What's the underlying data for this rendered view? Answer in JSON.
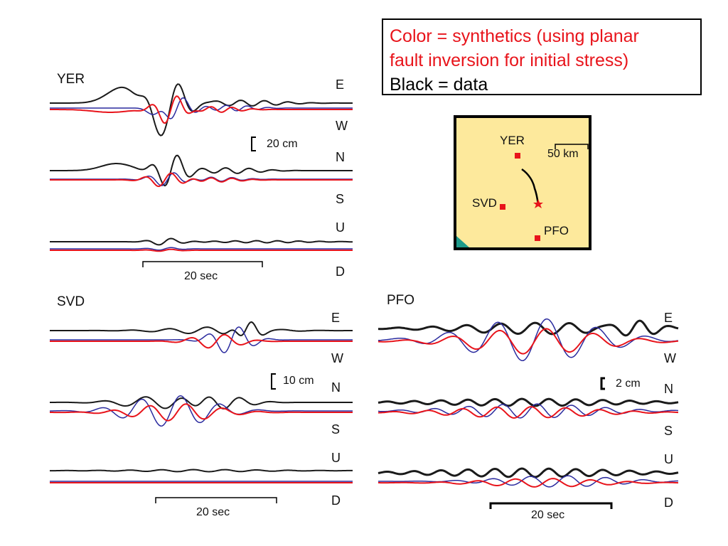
{
  "legend": {
    "line1": "Color = synthetics (using planar",
    "line2": "fault inversion for initial stress)",
    "line3": "Black = data"
  },
  "colors": {
    "data": "#1a1a1a",
    "synthetic_red": "#e8141b",
    "synthetic_blue": "#2a2a9e",
    "map_fill": "#fde99c",
    "station_marker": "#e8141b",
    "map_corner": "#1e9a8a"
  },
  "chart_data": [
    {
      "type": "line",
      "station": "YER",
      "components": [
        "E",
        "W",
        "N",
        "S",
        "U",
        "D"
      ],
      "amplitude_scale": "20 cm",
      "time_scale": "20 sec",
      "series": [
        {
          "name": "Black = data",
          "values": [
            0,
            0.1,
            0.3,
            0.9,
            0.4,
            -0.6,
            -1.0,
            1.0,
            0.6,
            -0.3,
            0.1,
            0,
            0.1,
            0
          ]
        },
        {
          "name": "Color = synthetics",
          "values": [
            0,
            0,
            -0.1,
            -0.2,
            -0.4,
            -0.8,
            0.4,
            -0.2,
            0.1,
            0,
            0,
            0,
            0,
            0
          ]
        }
      ]
    },
    {
      "type": "line",
      "station": "SVD",
      "components": [
        "E",
        "W",
        "N",
        "S",
        "U",
        "D"
      ],
      "amplitude_scale": "10 cm",
      "time_scale": "20 sec"
    },
    {
      "type": "line",
      "station": "PFO",
      "components": [
        "E",
        "W",
        "N",
        "S",
        "U",
        "D"
      ],
      "amplitude_scale": "2 cm",
      "time_scale": "20 sec"
    }
  ],
  "map": {
    "stations": [
      "YER",
      "SVD",
      "PFO"
    ],
    "scale_label": "50 km"
  }
}
